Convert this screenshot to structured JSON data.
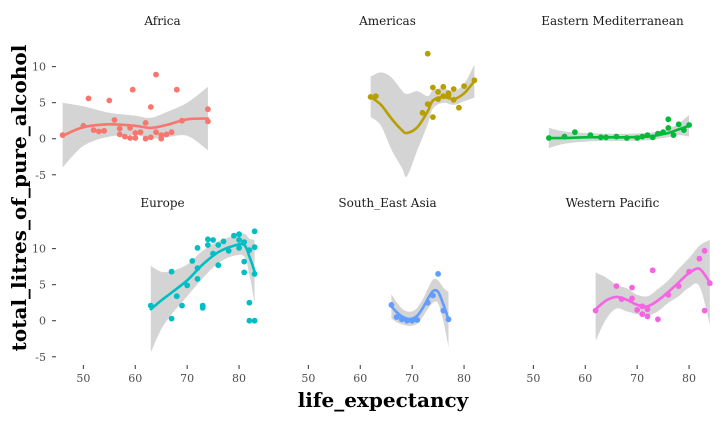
{
  "chart_data": {
    "type": "scatter",
    "xlabel": "life_expectancy",
    "ylabel": "total_litres_of_pure_alcohol",
    "x_ticks": [
      50,
      60,
      70,
      80
    ],
    "y_ticks": [
      -5,
      0,
      5,
      10
    ],
    "xlim": [
      45.5,
      85
    ],
    "ylim": [
      -6,
      13
    ],
    "band_color": "#d4d4d4",
    "panels": [
      {
        "name": "Africa",
        "color": "#f8766d",
        "points": [
          [
            46,
            0.5
          ],
          [
            50,
            1.8
          ],
          [
            51,
            5.6
          ],
          [
            52,
            1.2
          ],
          [
            53,
            1.0
          ],
          [
            54,
            1.1
          ],
          [
            55,
            5.3
          ],
          [
            56,
            2.6
          ],
          [
            57,
            1.4
          ],
          [
            57,
            0.6
          ],
          [
            58,
            0.3
          ],
          [
            59,
            1.5
          ],
          [
            59,
            0.1
          ],
          [
            59.5,
            6.8
          ],
          [
            60,
            0.8
          ],
          [
            60,
            0.1
          ],
          [
            61,
            0.9
          ],
          [
            62,
            2.2
          ],
          [
            62,
            0.0
          ],
          [
            63,
            4.4
          ],
          [
            63,
            0.2
          ],
          [
            64,
            8.9
          ],
          [
            64,
            0.9
          ],
          [
            65,
            0.0
          ],
          [
            65,
            0.5
          ],
          [
            66,
            0.6
          ],
          [
            67,
            0.9
          ],
          [
            68,
            6.8
          ],
          [
            69,
            2.5
          ],
          [
            74,
            2.4
          ],
          [
            74,
            4.1
          ]
        ],
        "curve": [
          [
            46,
            0.4
          ],
          [
            50,
            1.6
          ],
          [
            55,
            2.0
          ],
          [
            60,
            1.8
          ],
          [
            63,
            1.5
          ],
          [
            66,
            1.9
          ],
          [
            70,
            2.7
          ],
          [
            74,
            2.8
          ]
        ],
        "band": [
          [
            46,
            -4,
            5
          ],
          [
            50,
            -1,
            4.5
          ],
          [
            55,
            0.3,
            3.6
          ],
          [
            60,
            0.5,
            3.2
          ],
          [
            63,
            0.0,
            2.9
          ],
          [
            66,
            0.2,
            3.7
          ],
          [
            70,
            0.4,
            5.0
          ],
          [
            74,
            -1.6,
            7.2
          ]
        ]
      },
      {
        "name": "Americas",
        "color": "#b79f00",
        "points": [
          [
            62,
            5.8
          ],
          [
            63,
            5.9
          ],
          [
            72,
            3.6
          ],
          [
            73,
            11.8
          ],
          [
            73,
            4.8
          ],
          [
            74,
            7.1
          ],
          [
            74,
            3.0
          ],
          [
            75,
            6.5
          ],
          [
            75,
            5.5
          ],
          [
            76,
            7.2
          ],
          [
            76,
            5.9
          ],
          [
            77,
            6.3
          ],
          [
            77,
            6.0
          ],
          [
            78,
            5.4
          ],
          [
            78,
            6.9
          ],
          [
            79,
            4.3
          ],
          [
            80,
            7.3
          ],
          [
            82,
            8.1
          ]
        ],
        "curve": [
          [
            62,
            5.8
          ],
          [
            64,
            4.7
          ],
          [
            66,
            2.8
          ],
          [
            68,
            1.2
          ],
          [
            69,
            0.8
          ],
          [
            71,
            1.6
          ],
          [
            73,
            3.8
          ],
          [
            74,
            5.3
          ],
          [
            76,
            5.8
          ],
          [
            78,
            5.5
          ],
          [
            80,
            6.3
          ],
          [
            82,
            8.0
          ]
        ],
        "band": [
          [
            62,
            3.0,
            8.6
          ],
          [
            64,
            1.8,
            9.2
          ],
          [
            66,
            -1.5,
            8.5
          ],
          [
            68,
            -4.0,
            6.7
          ],
          [
            69,
            -5.2,
            6.2
          ],
          [
            71,
            -1.6,
            6.6
          ],
          [
            73,
            2.0,
            5.9
          ],
          [
            74,
            4.2,
            6.7
          ],
          [
            76,
            5.0,
            7.0
          ],
          [
            78,
            4.7,
            6.6
          ],
          [
            80,
            5.2,
            7.6
          ],
          [
            82,
            5.7,
            10.3
          ]
        ]
      },
      {
        "name": "Eastern Mediterranean",
        "color": "#00ba38",
        "points": [
          [
            53,
            0.1
          ],
          [
            56,
            0.3
          ],
          [
            58,
            0.9
          ],
          [
            61,
            0.5
          ],
          [
            63,
            0.2
          ],
          [
            64,
            0.2
          ],
          [
            66,
            0.3
          ],
          [
            68,
            0.1
          ],
          [
            70,
            0.1
          ],
          [
            71,
            0.3
          ],
          [
            72,
            0.5
          ],
          [
            73,
            0.2
          ],
          [
            74,
            0.7
          ],
          [
            75,
            0.9
          ],
          [
            76,
            1.5
          ],
          [
            76,
            2.7
          ],
          [
            77,
            0.5
          ],
          [
            78,
            2.0
          ],
          [
            79,
            1.2
          ],
          [
            80,
            1.9
          ]
        ],
        "curve": [
          [
            53,
            0.1
          ],
          [
            56,
            0.1
          ],
          [
            60,
            0.2
          ],
          [
            64,
            0.2
          ],
          [
            68,
            0.2
          ],
          [
            72,
            0.3
          ],
          [
            74,
            0.5
          ],
          [
            76,
            0.8
          ],
          [
            78,
            1.3
          ],
          [
            80,
            1.8
          ]
        ],
        "band": [
          [
            53,
            -1.3,
            1.5
          ],
          [
            56,
            -0.7,
            1.0
          ],
          [
            60,
            -0.4,
            0.8
          ],
          [
            64,
            -0.3,
            0.7
          ],
          [
            68,
            -0.3,
            0.7
          ],
          [
            72,
            -0.2,
            0.8
          ],
          [
            74,
            0.0,
            1.0
          ],
          [
            76,
            0.2,
            1.4
          ],
          [
            78,
            0.5,
            2.1
          ],
          [
            80,
            0.3,
            3.3
          ]
        ]
      },
      {
        "name": "Europe",
        "color": "#00bfc4",
        "points": [
          [
            63,
            2.1
          ],
          [
            67,
            6.8
          ],
          [
            67,
            0.3
          ],
          [
            68,
            3.4
          ],
          [
            69,
            2.1
          ],
          [
            70,
            4.9
          ],
          [
            71,
            8.3
          ],
          [
            72,
            10.1
          ],
          [
            72,
            7.3
          ],
          [
            72,
            5.8
          ],
          [
            73,
            1.8
          ],
          [
            73,
            2.1
          ],
          [
            74,
            11.3
          ],
          [
            74,
            10.5
          ],
          [
            75,
            9.3
          ],
          [
            75,
            11.2
          ],
          [
            76,
            7.7
          ],
          [
            76,
            10.5
          ],
          [
            77,
            11.0
          ],
          [
            78,
            9.7
          ],
          [
            79,
            11.8
          ],
          [
            80,
            10.1
          ],
          [
            80,
            11.2
          ],
          [
            80,
            12.0
          ],
          [
            81,
            8.2
          ],
          [
            81,
            6.7
          ],
          [
            81,
            10.9
          ],
          [
            82,
            9.8
          ],
          [
            82,
            2.5
          ],
          [
            82,
            0.0
          ],
          [
            83,
            12.4
          ],
          [
            83,
            10.2
          ],
          [
            83,
            6.5
          ],
          [
            83,
            0.0
          ]
        ],
        "curve": [
          [
            63,
            1.6
          ],
          [
            65,
            2.8
          ],
          [
            67,
            3.9
          ],
          [
            70,
            5.6
          ],
          [
            73,
            7.8
          ],
          [
            76,
            9.5
          ],
          [
            79,
            10.4
          ],
          [
            81,
            10.5
          ],
          [
            82,
            8.9
          ],
          [
            83,
            6.8
          ]
        ],
        "band": [
          [
            63,
            -4.4,
            7.6
          ],
          [
            65,
            -1.2,
            6.8
          ],
          [
            67,
            0.9,
            6.9
          ],
          [
            70,
            3.4,
            7.8
          ],
          [
            73,
            5.9,
            9.7
          ],
          [
            76,
            8.0,
            11.0
          ],
          [
            79,
            9.0,
            11.8
          ],
          [
            81,
            8.9,
            12.1
          ],
          [
            82,
            6.4,
            11.4
          ],
          [
            83,
            2.4,
            11.2
          ]
        ]
      },
      {
        "name": "South_East Asia",
        "color": "#619cff",
        "points": [
          [
            66,
            2.2
          ],
          [
            67,
            0.5
          ],
          [
            68,
            0.2
          ],
          [
            69,
            0.0
          ],
          [
            70,
            0.0
          ],
          [
            71,
            0.1
          ],
          [
            73,
            2.5
          ],
          [
            74,
            3.5
          ],
          [
            75,
            6.5
          ],
          [
            76,
            1.4
          ],
          [
            77,
            0.2
          ]
        ],
        "curve": [
          [
            66,
            2.0
          ],
          [
            67,
            1.2
          ],
          [
            68,
            0.6
          ],
          [
            69,
            0.3
          ],
          [
            70,
            0.3
          ],
          [
            71,
            0.7
          ],
          [
            72,
            1.7
          ],
          [
            73,
            3.0
          ],
          [
            74,
            4.1
          ],
          [
            75,
            4.0
          ],
          [
            76,
            2.3
          ],
          [
            77,
            0.2
          ]
        ],
        "band": [
          [
            66,
            0.3,
            3.7
          ],
          [
            67,
            -0.2,
            2.6
          ],
          [
            68,
            -0.5,
            1.7
          ],
          [
            69,
            -0.7,
            1.3
          ],
          [
            70,
            -0.7,
            1.3
          ],
          [
            71,
            -0.4,
            1.8
          ],
          [
            72,
            0.5,
            2.9
          ],
          [
            73,
            1.6,
            4.4
          ],
          [
            74,
            2.5,
            5.7
          ],
          [
            75,
            2.4,
            5.6
          ],
          [
            76,
            0.0,
            4.6
          ],
          [
            77,
            -3.6,
            4.0
          ]
        ]
      },
      {
        "name": "Western Pacific",
        "color": "#f564e3",
        "points": [
          [
            62,
            1.4
          ],
          [
            66,
            4.8
          ],
          [
            67,
            3.0
          ],
          [
            69,
            4.6
          ],
          [
            69,
            3.1
          ],
          [
            70,
            1.5
          ],
          [
            71,
            0.9
          ],
          [
            71,
            2.0
          ],
          [
            72,
            0.6
          ],
          [
            72,
            1.6
          ],
          [
            73,
            7.0
          ],
          [
            74,
            0.2
          ],
          [
            76,
            3.6
          ],
          [
            78,
            4.8
          ],
          [
            80,
            6.8
          ],
          [
            82,
            8.6
          ],
          [
            83,
            9.7
          ],
          [
            83,
            1.4
          ],
          [
            84,
            5.2
          ]
        ],
        "curve": [
          [
            62,
            1.6
          ],
          [
            64,
            2.8
          ],
          [
            66,
            3.3
          ],
          [
            68,
            2.9
          ],
          [
            70,
            2.2
          ],
          [
            72,
            2.0
          ],
          [
            74,
            2.8
          ],
          [
            76,
            4.0
          ],
          [
            78,
            5.3
          ],
          [
            80,
            6.6
          ],
          [
            82,
            7.2
          ],
          [
            84,
            5.3
          ]
        ],
        "band": [
          [
            62,
            -2.8,
            6.7
          ],
          [
            64,
            0.2,
            6.0
          ],
          [
            66,
            1.7,
            5.0
          ],
          [
            68,
            1.3,
            4.5
          ],
          [
            70,
            0.9,
            3.6
          ],
          [
            72,
            0.7,
            3.4
          ],
          [
            74,
            1.3,
            4.4
          ],
          [
            76,
            2.5,
            5.6
          ],
          [
            78,
            3.4,
            7.2
          ],
          [
            80,
            4.6,
            8.7
          ],
          [
            82,
            4.8,
            10.4
          ],
          [
            84,
            -0.5,
            11.2
          ]
        ]
      }
    ]
  }
}
